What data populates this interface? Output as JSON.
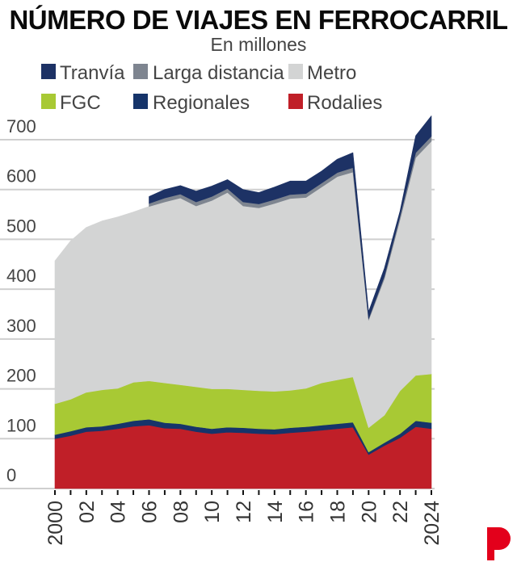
{
  "chart_data": {
    "type": "area",
    "stacked": true,
    "title": "NÚMERO DE VIAJES EN FERROCARRIL",
    "subtitle": "En millones",
    "xlabel": "",
    "ylabel": "",
    "ylim": [
      0,
      700
    ],
    "yticks": [
      0,
      100,
      200,
      300,
      400,
      500,
      600,
      700
    ],
    "xlim": [
      2000,
      2024
    ],
    "x": [
      2000,
      2001,
      2002,
      2003,
      2004,
      2005,
      2006,
      2007,
      2008,
      2009,
      2010,
      2011,
      2012,
      2013,
      2014,
      2015,
      2016,
      2017,
      2018,
      2019,
      2020,
      2021,
      2022,
      2023,
      2024
    ],
    "xtick_values": [
      2000,
      2002,
      2004,
      2006,
      2008,
      2010,
      2012,
      2014,
      2016,
      2018,
      2020,
      2022,
      2024
    ],
    "xtick_labels": [
      "2000",
      "02",
      "04",
      "06",
      "08",
      "10",
      "12",
      "14",
      "16",
      "18",
      "20",
      "22",
      "2024"
    ],
    "grid": true,
    "legend_position": "top",
    "legend": [
      {
        "name": "Tranvía",
        "color": "#1d3265"
      },
      {
        "name": "Larga distancia",
        "color": "#7e8590"
      },
      {
        "name": "Metro",
        "color": "#d3d4d4"
      },
      {
        "name": "FGC",
        "color": "#a8c934"
      },
      {
        "name": "Regionales",
        "color": "#16346a"
      },
      {
        "name": "Rodalies",
        "color": "#c01f28"
      }
    ],
    "series": [
      {
        "name": "Rodalies",
        "color": "#c01f28",
        "values": [
          100,
          106,
          114,
          116,
          120,
          125,
          127,
          121,
          120,
          114,
          110,
          113,
          112,
          110,
          109,
          112,
          114,
          117,
          120,
          123,
          68,
          86,
          102,
          124,
          120
        ]
      },
      {
        "name": "Regionales",
        "color": "#16346a",
        "values": [
          8,
          9,
          9,
          9,
          10,
          11,
          12,
          11,
          10,
          10,
          10,
          10,
          10,
          10,
          10,
          10,
          10,
          10,
          10,
          10,
          5,
          6,
          8,
          12,
          12
        ]
      },
      {
        "name": "FGC",
        "color": "#a8c934",
        "values": [
          62,
          64,
          70,
          73,
          71,
          77,
          77,
          80,
          78,
          80,
          80,
          77,
          76,
          76,
          76,
          75,
          77,
          85,
          88,
          91,
          49,
          55,
          86,
          91,
          98
        ]
      },
      {
        "name": "Metro",
        "color": "#d3d4d4",
        "values": [
          287,
          318,
          331,
          339,
          344,
          342,
          350,
          363,
          375,
          363,
          378,
          394,
          369,
          367,
          377,
          385,
          383,
          393,
          408,
          411,
          216,
          274,
          344,
          437,
          467
        ]
      },
      {
        "name": "Larga distancia",
        "color": "#7e8590",
        "values": [
          null,
          null,
          null,
          null,
          null,
          null,
          6,
          8,
          8,
          8,
          8,
          8,
          8,
          8,
          8,
          8,
          8,
          8,
          8,
          9,
          3,
          5,
          7,
          10,
          10
        ]
      },
      {
        "name": "Tranvía",
        "color": "#1d3265",
        "values": [
          null,
          null,
          null,
          null,
          null,
          null,
          14,
          17,
          17,
          22,
          21,
          18,
          25,
          23,
          25,
          27,
          25,
          24,
          27,
          30,
          14,
          16,
          10,
          34,
          41
        ]
      }
    ]
  },
  "logo": {
    "text": "P",
    "color": "#e3001b"
  }
}
